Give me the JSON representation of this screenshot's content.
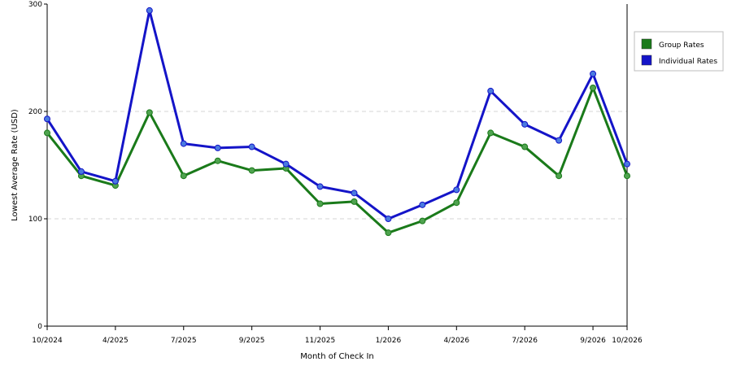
{
  "chart_data": {
    "type": "line",
    "title": "",
    "xlabel": "Month of Check In",
    "ylabel": "Lowest Average Rate (USD)",
    "ylim": [
      0,
      300
    ],
    "yticks": [
      0,
      100,
      200,
      300
    ],
    "grid": "horizontal dashed",
    "legend_position": "top-right",
    "xticks": [
      {
        "index": 0,
        "label": "10/2024"
      },
      {
        "index": 2,
        "label": "4/2025"
      },
      {
        "index": 4,
        "label": "7/2025"
      },
      {
        "index": 6,
        "label": "9/2025"
      },
      {
        "index": 8,
        "label": "11/2025"
      },
      {
        "index": 10,
        "label": "1/2026"
      },
      {
        "index": 12,
        "label": "4/2026"
      },
      {
        "index": 14,
        "label": "7/2026"
      },
      {
        "index": 16,
        "label": "9/2026"
      },
      {
        "index": 17,
        "label": "10/2026"
      }
    ],
    "series": [
      {
        "name": "Group Rates",
        "color": "#1a7a1a",
        "marker_color": "#4fa34f",
        "values": [
          180,
          140,
          131,
          199,
          140,
          154,
          145,
          147,
          114,
          116,
          87,
          98,
          115,
          180,
          167,
          140,
          222,
          140
        ]
      },
      {
        "name": "Individual Rates",
        "color": "#1414c8",
        "marker_color": "#4a7ae0",
        "values": [
          193,
          144,
          135,
          294,
          170,
          166,
          167,
          151,
          130,
          124,
          100,
          113,
          127,
          219,
          188,
          173,
          235,
          151
        ]
      }
    ]
  }
}
